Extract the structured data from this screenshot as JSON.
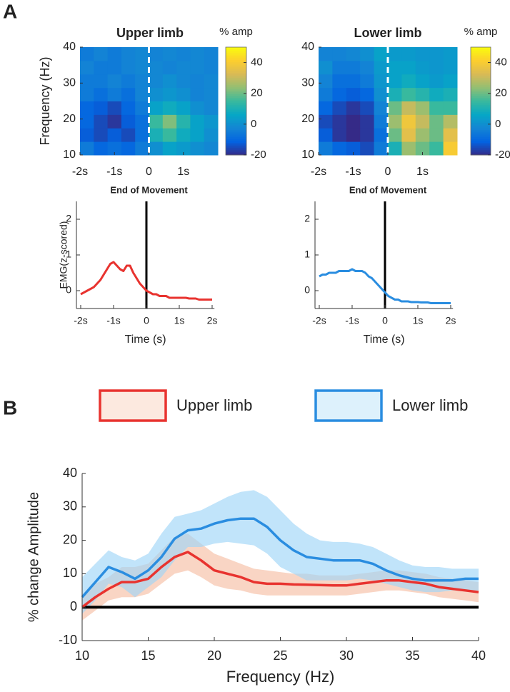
{
  "panel_labels": [
    "A",
    "B"
  ],
  "chart_data": [
    {
      "type": "heatmap",
      "title": "Upper limb",
      "colorbar_label": "% amp",
      "ylabel": "Frequency (Hz)",
      "xlabel": "End of Movement",
      "xlim": [
        -2,
        2
      ],
      "xticks": [
        {
          "value": -2,
          "label": "-2s"
        },
        {
          "value": -1,
          "label": "-1s"
        },
        0,
        {
          "value": 1,
          "label": "1s"
        }
      ],
      "ylim": [
        10,
        40
      ],
      "yticks": [
        10,
        20,
        30,
        40
      ],
      "clim": [
        -20,
        50
      ],
      "cticks": [
        -20,
        0,
        20,
        40
      ],
      "event_x": 0,
      "x": [
        -1.8,
        -1.4,
        -1.0,
        -0.6,
        -0.2,
        0.2,
        0.6,
        1.0,
        1.4,
        1.8
      ],
      "y": [
        11.875,
        15.625,
        19.375,
        23.125,
        26.875,
        30.625,
        34.375,
        38.125
      ],
      "z": [
        [
          -5,
          -10,
          -8,
          -10,
          -5,
          0,
          5,
          3,
          0,
          -2
        ],
        [
          -12,
          -15,
          -12,
          -15,
          -8,
          10,
          15,
          8,
          5,
          0
        ],
        [
          -10,
          -15,
          -18,
          -12,
          -8,
          15,
          22,
          12,
          5,
          2
        ],
        [
          -10,
          -12,
          -15,
          -10,
          -5,
          5,
          8,
          5,
          0,
          -2
        ],
        [
          -5,
          -8,
          -5,
          -8,
          -3,
          0,
          2,
          0,
          -3,
          -2
        ],
        [
          -5,
          -5,
          -3,
          -5,
          -3,
          -2,
          0,
          -2,
          -3,
          -2
        ],
        [
          -3,
          -5,
          -5,
          -3,
          -2,
          -2,
          -3,
          -2,
          -2,
          -3
        ],
        [
          -5,
          -3,
          -5,
          -3,
          -2,
          -3,
          -2,
          -3,
          -2,
          -3
        ]
      ]
    },
    {
      "type": "heatmap",
      "title": "Lower limb",
      "colorbar_label": "% amp",
      "xlabel": "End of Movement",
      "xlim": [
        -2,
        2
      ],
      "xticks": [
        {
          "value": -2,
          "label": "-2s"
        },
        {
          "value": -1,
          "label": "-1s"
        },
        0,
        {
          "value": 1,
          "label": "1s"
        }
      ],
      "ylim": [
        10,
        40
      ],
      "yticks": [
        10,
        20,
        30,
        40
      ],
      "clim": [
        -20,
        50
      ],
      "cticks": [
        -20,
        0,
        20,
        40
      ],
      "event_x": 0,
      "x": [
        -1.8,
        -1.4,
        -1.0,
        -0.6,
        -0.2,
        0.2,
        0.6,
        1.0,
        1.4,
        1.8
      ],
      "y": [
        11.875,
        15.625,
        19.375,
        23.125,
        26.875,
        30.625,
        34.375,
        38.125
      ],
      "z": [
        [
          -5,
          -10,
          -12,
          -15,
          -5,
          10,
          25,
          20,
          15,
          40
        ],
        [
          -12,
          -18,
          -20,
          -18,
          -8,
          20,
          35,
          25,
          20,
          35
        ],
        [
          -15,
          -18,
          -20,
          -18,
          -5,
          25,
          38,
          30,
          20,
          28
        ],
        [
          -10,
          -15,
          -18,
          -15,
          -3,
          20,
          30,
          25,
          15,
          15
        ],
        [
          -5,
          -10,
          -12,
          -10,
          0,
          10,
          15,
          12,
          8,
          10
        ],
        [
          -3,
          -8,
          -8,
          -5,
          2,
          5,
          8,
          5,
          3,
          5
        ],
        [
          0,
          -5,
          -5,
          -3,
          3,
          5,
          5,
          3,
          2,
          3
        ],
        [
          -3,
          -3,
          -2,
          0,
          5,
          3,
          3,
          2,
          2,
          3
        ]
      ]
    },
    {
      "type": "line",
      "ylabel": "EMG(z-scored)",
      "xlabel": "Time (s)",
      "xlim": [
        -2.13,
        2.07
      ],
      "xticks": [
        {
          "value": -2,
          "label": "-2s"
        },
        {
          "value": -1,
          "label": "-1s"
        },
        0,
        {
          "value": 1,
          "label": "1s"
        },
        {
          "value": 2,
          "label": "2s"
        }
      ],
      "ylim": [
        -0.5,
        2.5
      ],
      "yticks": [
        0,
        1,
        2
      ],
      "event_x": 0,
      "x": [
        -2,
        -1.9,
        -1.8,
        -1.7,
        -1.6,
        -1.5,
        -1.4,
        -1.3,
        -1.2,
        -1.1,
        -1,
        -0.9,
        -0.8,
        -0.7,
        -0.6,
        -0.5,
        -0.4,
        -0.3,
        -0.2,
        -0.1,
        0,
        0.1,
        0.2,
        0.3,
        0.4,
        0.5,
        0.6,
        0.7,
        0.8,
        0.9,
        1,
        1.1,
        1.2,
        1.3,
        1.4,
        1.5,
        1.6,
        1.7,
        1.8,
        1.9,
        2
      ],
      "series": [
        {
          "color": "#e8332f",
          "values": [
            -0.1,
            -0.05,
            0,
            0.05,
            0.1,
            0.2,
            0.3,
            0.45,
            0.6,
            0.75,
            0.8,
            0.7,
            0.6,
            0.55,
            0.7,
            0.7,
            0.5,
            0.35,
            0.2,
            0.1,
            0,
            -0.05,
            -0.1,
            -0.1,
            -0.15,
            -0.15,
            -0.15,
            -0.2,
            -0.2,
            -0.2,
            -0.2,
            -0.2,
            -0.2,
            -0.22,
            -0.22,
            -0.22,
            -0.25,
            -0.25,
            -0.25,
            -0.25,
            -0.25
          ]
        }
      ]
    },
    {
      "type": "line",
      "xlabel": "Time (s)",
      "xlim": [
        -2.13,
        2.07
      ],
      "xticks": [
        {
          "value": -2,
          "label": "-2s"
        },
        {
          "value": -1,
          "label": "-1s"
        },
        0,
        {
          "value": 1,
          "label": "1s"
        },
        {
          "value": 2,
          "label": "2s"
        }
      ],
      "ylim": [
        -0.5,
        2.5
      ],
      "yticks": [
        0,
        1,
        2
      ],
      "event_x": 0,
      "x": [
        -2,
        -1.9,
        -1.8,
        -1.7,
        -1.6,
        -1.5,
        -1.4,
        -1.3,
        -1.2,
        -1.1,
        -1,
        -0.9,
        -0.8,
        -0.7,
        -0.6,
        -0.5,
        -0.4,
        -0.3,
        -0.2,
        -0.1,
        0,
        0.1,
        0.2,
        0.3,
        0.4,
        0.5,
        0.6,
        0.7,
        0.8,
        0.9,
        1,
        1.1,
        1.2,
        1.3,
        1.4,
        1.5,
        1.6,
        1.7,
        1.8,
        1.9,
        2
      ],
      "series": [
        {
          "color": "#2a8de0",
          "values": [
            0.4,
            0.45,
            0.45,
            0.5,
            0.5,
            0.5,
            0.55,
            0.55,
            0.55,
            0.55,
            0.6,
            0.55,
            0.55,
            0.55,
            0.5,
            0.4,
            0.35,
            0.25,
            0.15,
            0.05,
            -0.05,
            -0.15,
            -0.2,
            -0.25,
            -0.25,
            -0.3,
            -0.3,
            -0.3,
            -0.32,
            -0.32,
            -0.32,
            -0.33,
            -0.33,
            -0.33,
            -0.35,
            -0.35,
            -0.35,
            -0.35,
            -0.35,
            -0.35,
            -0.35
          ]
        }
      ]
    },
    {
      "type": "line",
      "ylabel": "% change Amplitude",
      "xlabel": "Frequency (Hz)",
      "xlim": [
        10,
        40
      ],
      "xticks": [
        10,
        15,
        20,
        25,
        30,
        35,
        40
      ],
      "ylim": [
        -10,
        40
      ],
      "yticks": [
        -10,
        0,
        10,
        20,
        30,
        40
      ],
      "hline": 0,
      "x": [
        10,
        11,
        12,
        13,
        14,
        15,
        16,
        17,
        18,
        19,
        20,
        21,
        22,
        23,
        24,
        25,
        26,
        27,
        28,
        29,
        30,
        31,
        32,
        33,
        34,
        35,
        36,
        37,
        38,
        39,
        40
      ],
      "series": [
        {
          "name": "Upper limb",
          "color": "#e8332f",
          "band_color": "#f6bfa4",
          "values": [
            0,
            3,
            5.5,
            7.5,
            7.5,
            8.5,
            12,
            15,
            16.5,
            14,
            11,
            10,
            9,
            7.5,
            7,
            7,
            6.8,
            6.7,
            6.6,
            6.5,
            6.5,
            7,
            7.5,
            8,
            8,
            7.5,
            7,
            6,
            5.5,
            5,
            4.5
          ],
          "upper": [
            3,
            7,
            9,
            12,
            12,
            13,
            17,
            21,
            22,
            19,
            16,
            14.5,
            13,
            11.5,
            11,
            10.5,
            10,
            10,
            9.5,
            9.5,
            9.5,
            10,
            10.5,
            11,
            11,
            10.5,
            10,
            9,
            8.5,
            8,
            7.5
          ],
          "lower": [
            -4,
            -1,
            2,
            3,
            3,
            4,
            7,
            10,
            11,
            9,
            6.5,
            5.5,
            5,
            4,
            3.5,
            3.5,
            3.5,
            3.5,
            3.5,
            3.5,
            3.5,
            4,
            4.5,
            5,
            5,
            4.5,
            4,
            3,
            2.5,
            2,
            1.5
          ]
        },
        {
          "name": "Lower limb",
          "color": "#2a8de0",
          "band_color": "#9fd6f7",
          "values": [
            3,
            7.5,
            12,
            10.5,
            8.5,
            11,
            15,
            20.5,
            23,
            23.5,
            25,
            26,
            26.5,
            26.5,
            24,
            20,
            17,
            15,
            14.5,
            14,
            14,
            14,
            13,
            11,
            9.5,
            8.5,
            8,
            8,
            8,
            8.5,
            8.5
          ],
          "upper": [
            9,
            13,
            17,
            15,
            14,
            16,
            22,
            27,
            28,
            29,
            31,
            33,
            34.5,
            35,
            33,
            29,
            25,
            22,
            20,
            19.5,
            19.5,
            19,
            18,
            16,
            14,
            12.5,
            12,
            12,
            11.5,
            11.5,
            11.5
          ],
          "lower": [
            -2,
            2,
            7,
            6,
            3,
            6,
            9,
            14,
            18,
            18,
            19,
            19.5,
            19,
            18.5,
            16,
            12,
            10,
            8,
            8,
            8,
            8,
            8.5,
            8,
            7,
            6,
            5,
            4.5,
            4.5,
            5,
            5,
            5
          ]
        }
      ]
    }
  ]
}
